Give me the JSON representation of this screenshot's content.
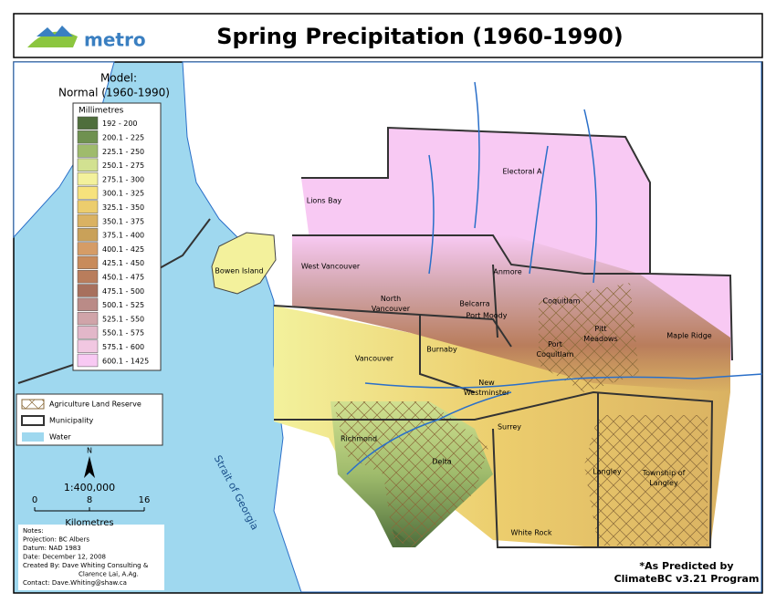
{
  "header": {
    "logo_text": "metro",
    "title": "Spring Precipitation (1960-1990)"
  },
  "legend": {
    "model_title": "Model:",
    "model_subtitle": "Normal (1960-1990)",
    "units": "Millimetres",
    "classes": [
      {
        "label": "192 - 200",
        "color": "#4f6e3c"
      },
      {
        "label": "200.1 - 225",
        "color": "#6f9150"
      },
      {
        "label": "225.1 - 250",
        "color": "#9fbb6c"
      },
      {
        "label": "250.1 - 275",
        "color": "#d2e191"
      },
      {
        "label": "275.1 - 300",
        "color": "#f3f19c"
      },
      {
        "label": "300.1 - 325",
        "color": "#f7e27c"
      },
      {
        "label": "325.1 - 350",
        "color": "#eccd6d"
      },
      {
        "label": "350.1 - 375",
        "color": "#dab262"
      },
      {
        "label": "375.1 - 400",
        "color": "#c9a159"
      },
      {
        "label": "400.1 - 425",
        "color": "#d59c66"
      },
      {
        "label": "425.1 - 450",
        "color": "#c88b5b"
      },
      {
        "label": "450.1 - 475",
        "color": "#b97d5c"
      },
      {
        "label": "475.1 - 500",
        "color": "#a7705d"
      },
      {
        "label": "500.1 - 525",
        "color": "#ba8b87"
      },
      {
        "label": "525.1 - 550",
        "color": "#d0a4a9"
      },
      {
        "label": "550.1 - 575",
        "color": "#e2b7c9"
      },
      {
        "label": "575.1 - 600",
        "color": "#f1c7e1"
      },
      {
        "label": "600.1 - 1425",
        "color": "#f8c9f3"
      }
    ]
  },
  "layers": [
    "Agriculture Land Reserve",
    "Municipality",
    "Water"
  ],
  "north": "N",
  "scale": {
    "ratio": "1:400,000",
    "ticks": [
      0,
      8,
      16
    ],
    "unit": "Kilometres"
  },
  "notes": [
    "Notes:",
    "Projection: BC Albers",
    "Datum: NAD 1983",
    "Date: December 12, 2008",
    "Created By: Dave Whiting Consulting &",
    "Clarence Lai, A.Ag.",
    "Contact: Dave.Whiting@shaw.ca"
  ],
  "water_label": "Strait of Georgia",
  "places": [
    [
      "Electoral A"
    ],
    [
      "Lions Bay"
    ],
    [
      "Bowen Island"
    ],
    [
      "West Vancouver"
    ],
    [
      "North",
      "Vancouver"
    ],
    [
      "Anmore"
    ],
    [
      "Belcarra"
    ],
    [
      "Port Moody"
    ],
    [
      "Coquitlam"
    ],
    [
      "Pitt",
      "Meadows"
    ],
    [
      "Port",
      "Coquitlam"
    ],
    [
      "Maple Ridge"
    ],
    [
      "Vancouver"
    ],
    [
      "Burnaby"
    ],
    [
      "New",
      "Westminster"
    ],
    [
      "Richmond"
    ],
    [
      "Delta"
    ],
    [
      "Surrey"
    ],
    [
      "Langley"
    ],
    [
      "Township of",
      "Langley"
    ],
    [
      "White Rock"
    ]
  ],
  "footer": [
    "*As Predicted by",
    "ClimateBC v3.21 Program"
  ]
}
